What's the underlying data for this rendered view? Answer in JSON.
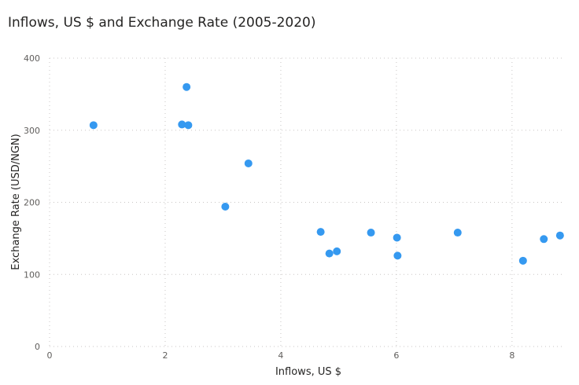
{
  "chart_data": {
    "type": "scatter",
    "title": "Inflows, US $ and Exchange Rate (2005-2020)",
    "xlabel": "Inflows, US $",
    "ylabel": "Exchange Rate (USD/NGN)",
    "xlim": [
      0,
      8.9
    ],
    "ylim": [
      0,
      400
    ],
    "xticks": [
      0,
      2,
      4,
      6,
      8
    ],
    "yticks": [
      0,
      100,
      200,
      300,
      400
    ],
    "grid": true,
    "point_color": "#3599f0",
    "points": [
      {
        "x": 0.76,
        "y": 307
      },
      {
        "x": 2.29,
        "y": 308
      },
      {
        "x": 2.37,
        "y": 360
      },
      {
        "x": 2.4,
        "y": 307
      },
      {
        "x": 3.04,
        "y": 194
      },
      {
        "x": 3.44,
        "y": 254
      },
      {
        "x": 4.69,
        "y": 159
      },
      {
        "x": 4.84,
        "y": 129
      },
      {
        "x": 4.97,
        "y": 132
      },
      {
        "x": 5.56,
        "y": 158
      },
      {
        "x": 6.01,
        "y": 151
      },
      {
        "x": 6.02,
        "y": 126
      },
      {
        "x": 7.06,
        "y": 158
      },
      {
        "x": 8.19,
        "y": 119
      },
      {
        "x": 8.55,
        "y": 149
      },
      {
        "x": 8.83,
        "y": 154
      }
    ]
  }
}
